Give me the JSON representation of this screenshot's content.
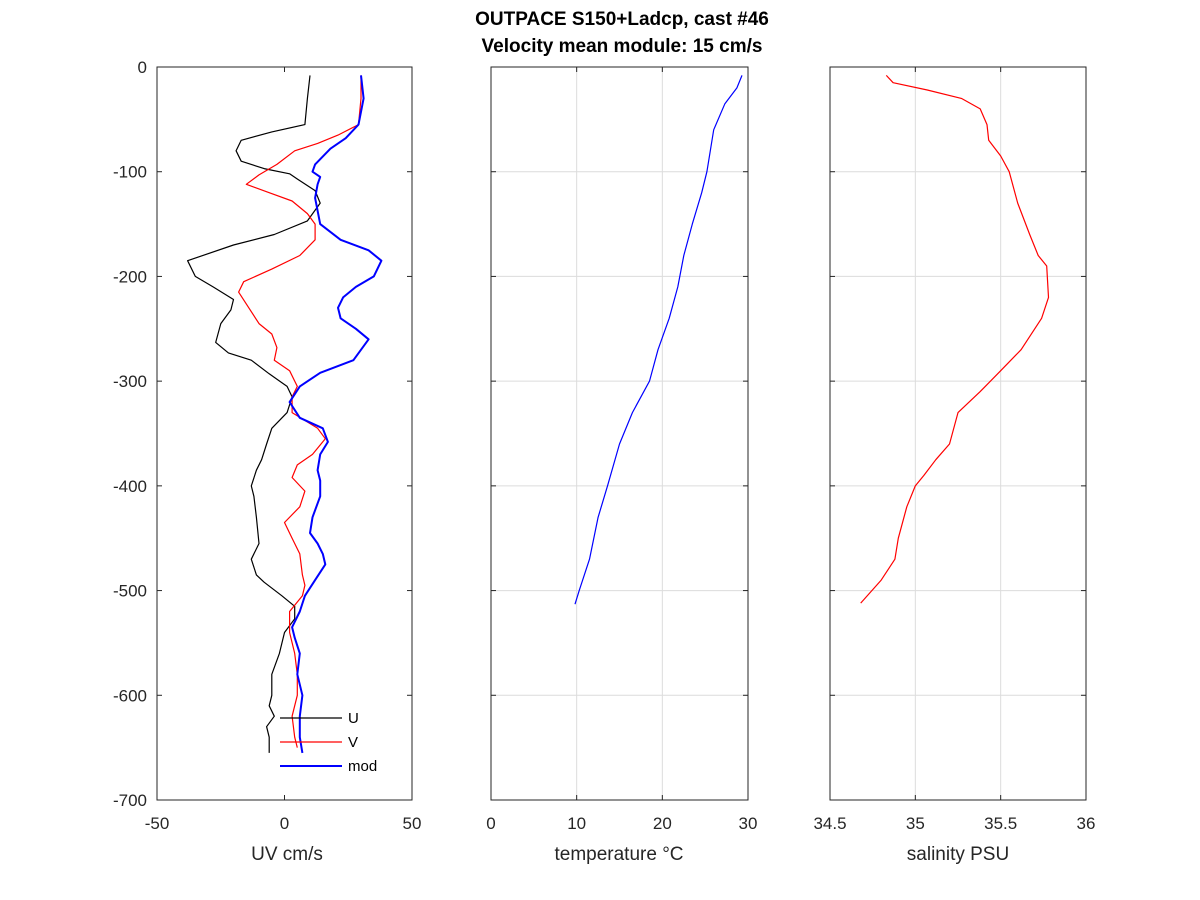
{
  "title_line1": "OUTPACE S150+Ladcp, cast #46",
  "title_line2": "Velocity mean module:  15 cm/s",
  "chart_data": [
    {
      "type": "line",
      "xlabel": "UV cm/s",
      "ylabel": "",
      "xlim": [
        -50,
        50
      ],
      "ylim": [
        -700,
        0
      ],
      "xticks": [
        -50,
        0,
        50
      ],
      "yticks": [
        0,
        -100,
        -200,
        -300,
        -400,
        -500,
        -600,
        -700
      ],
      "grid": false,
      "legend": "bottom-right",
      "series": [
        {
          "name": "U",
          "color": "#000000",
          "width": 1.2,
          "points": [
            [
              10,
              -8
            ],
            [
              9,
              -30
            ],
            [
              8,
              -55
            ],
            [
              -5,
              -62
            ],
            [
              -17,
              -70
            ],
            [
              -19,
              -80
            ],
            [
              -17,
              -90
            ],
            [
              -8,
              -97
            ],
            [
              2,
              -102
            ],
            [
              5,
              -107
            ],
            [
              12,
              -118
            ],
            [
              14,
              -130
            ],
            [
              9,
              -147
            ],
            [
              -4,
              -160
            ],
            [
              -20,
              -170
            ],
            [
              -38,
              -185
            ],
            [
              -35,
              -200
            ],
            [
              -28,
              -210
            ],
            [
              -20,
              -222
            ],
            [
              -21,
              -232
            ],
            [
              -25,
              -245
            ],
            [
              -27,
              -263
            ],
            [
              -22,
              -273
            ],
            [
              -13,
              -280
            ],
            [
              -6,
              -293
            ],
            [
              1,
              -305
            ],
            [
              3,
              -315
            ],
            [
              1,
              -330
            ],
            [
              -5,
              -345
            ],
            [
              -7,
              -360
            ],
            [
              -9,
              -375
            ],
            [
              -11,
              -385
            ],
            [
              -13,
              -400
            ],
            [
              -12,
              -410
            ],
            [
              -11,
              -430
            ],
            [
              -10,
              -455
            ],
            [
              -13,
              -470
            ],
            [
              -11,
              -485
            ],
            [
              -8,
              -492
            ],
            [
              -1,
              -505
            ],
            [
              4,
              -515
            ],
            [
              4,
              -527
            ],
            [
              0,
              -540
            ],
            [
              -2,
              -560
            ],
            [
              -5,
              -580
            ],
            [
              -5,
              -600
            ],
            [
              -6,
              -610
            ],
            [
              -4,
              -620
            ],
            [
              -7,
              -630
            ],
            [
              -6,
              -640
            ],
            [
              -6,
              -655
            ]
          ]
        },
        {
          "name": "V",
          "color": "#ff0000",
          "width": 1.2,
          "points": [
            [
              30,
              -8
            ],
            [
              30,
              -30
            ],
            [
              29,
              -55
            ],
            [
              21,
              -65
            ],
            [
              13,
              -73
            ],
            [
              4,
              -80
            ],
            [
              -3,
              -93
            ],
            [
              -10,
              -103
            ],
            [
              -15,
              -112
            ],
            [
              -6,
              -120
            ],
            [
              3,
              -128
            ],
            [
              9,
              -140
            ],
            [
              12,
              -150
            ],
            [
              12,
              -165
            ],
            [
              6,
              -180
            ],
            [
              -5,
              -193
            ],
            [
              -16,
              -205
            ],
            [
              -18,
              -215
            ],
            [
              -14,
              -230
            ],
            [
              -10,
              -245
            ],
            [
              -5,
              -255
            ],
            [
              -3,
              -268
            ],
            [
              -4,
              -280
            ],
            [
              2,
              -290
            ],
            [
              5,
              -305
            ],
            [
              3,
              -315
            ],
            [
              3,
              -330
            ],
            [
              13,
              -345
            ],
            [
              16,
              -355
            ],
            [
              11,
              -370
            ],
            [
              5,
              -380
            ],
            [
              3,
              -392
            ],
            [
              8,
              -405
            ],
            [
              6,
              -420
            ],
            [
              0,
              -435
            ],
            [
              3,
              -450
            ],
            [
              6,
              -465
            ],
            [
              7,
              -485
            ],
            [
              8,
              -495
            ],
            [
              7,
              -505
            ],
            [
              2,
              -520
            ],
            [
              2,
              -540
            ],
            [
              4,
              -560
            ],
            [
              5,
              -580
            ],
            [
              5,
              -600
            ],
            [
              3,
              -620
            ],
            [
              4,
              -640
            ],
            [
              5,
              -650
            ]
          ]
        },
        {
          "name": "mod",
          "color": "#0000ff",
          "width": 2,
          "points": [
            [
              30,
              -8
            ],
            [
              31,
              -30
            ],
            [
              29,
              -55
            ],
            [
              24,
              -68
            ],
            [
              18,
              -78
            ],
            [
              12,
              -93
            ],
            [
              11,
              -100
            ],
            [
              14,
              -105
            ],
            [
              13,
              -112
            ],
            [
              12,
              -125
            ],
            [
              14,
              -150
            ],
            [
              22,
              -165
            ],
            [
              33,
              -175
            ],
            [
              38,
              -185
            ],
            [
              35,
              -200
            ],
            [
              28,
              -210
            ],
            [
              23,
              -220
            ],
            [
              21,
              -230
            ],
            [
              22,
              -240
            ],
            [
              28,
              -250
            ],
            [
              33,
              -260
            ],
            [
              27,
              -280
            ],
            [
              14,
              -292
            ],
            [
              6,
              -305
            ],
            [
              2,
              -320
            ],
            [
              6,
              -335
            ],
            [
              15,
              -345
            ],
            [
              17,
              -358
            ],
            [
              14,
              -370
            ],
            [
              13,
              -385
            ],
            [
              14,
              -395
            ],
            [
              14,
              -410
            ],
            [
              11,
              -430
            ],
            [
              10,
              -445
            ],
            [
              13,
              -455
            ],
            [
              15,
              -465
            ],
            [
              16,
              -475
            ],
            [
              12,
              -490
            ],
            [
              8,
              -505
            ],
            [
              6,
              -520
            ],
            [
              3,
              -535
            ],
            [
              4,
              -545
            ],
            [
              6,
              -560
            ],
            [
              5,
              -580
            ],
            [
              7,
              -600
            ],
            [
              6,
              -620
            ],
            [
              6,
              -640
            ],
            [
              7,
              -655
            ]
          ]
        }
      ]
    },
    {
      "type": "line",
      "xlabel": "temperature °C",
      "ylabel": "",
      "xlim": [
        0,
        30
      ],
      "ylim": [
        -700,
        0
      ],
      "xticks": [
        0,
        10,
        20,
        30
      ],
      "yticks": [
        0,
        -100,
        -200,
        -300,
        -400,
        -500,
        -600,
        -700
      ],
      "grid": true,
      "series": [
        {
          "name": "",
          "color": "#0000ff",
          "width": 1.2,
          "points": [
            [
              29.3,
              -8
            ],
            [
              28.7,
              -20
            ],
            [
              27.3,
              -35
            ],
            [
              26.0,
              -60
            ],
            [
              25.6,
              -80
            ],
            [
              25.2,
              -100
            ],
            [
              24.6,
              -120
            ],
            [
              23.5,
              -150
            ],
            [
              22.5,
              -180
            ],
            [
              21.8,
              -210
            ],
            [
              20.8,
              -240
            ],
            [
              19.5,
              -270
            ],
            [
              18.5,
              -300
            ],
            [
              16.5,
              -330
            ],
            [
              15.0,
              -360
            ],
            [
              13.6,
              -400
            ],
            [
              12.5,
              -430
            ],
            [
              11.5,
              -470
            ],
            [
              10.3,
              -500
            ],
            [
              9.8,
              -513
            ]
          ]
        }
      ]
    },
    {
      "type": "line",
      "xlabel": "salinity PSU",
      "ylabel": "",
      "xlim": [
        34.5,
        36
      ],
      "xticks": [
        34.5,
        35,
        35.5,
        36
      ],
      "xticklabels": [
        "34.5",
        "35",
        "35.5",
        "36"
      ],
      "ylim": [
        -700,
        0
      ],
      "yticks": [
        0,
        -100,
        -200,
        -300,
        -400,
        -500,
        -600,
        -700
      ],
      "grid": true,
      "series": [
        {
          "name": "",
          "color": "#ff0000",
          "width": 1.2,
          "points": [
            [
              34.83,
              -8
            ],
            [
              34.87,
              -15
            ],
            [
              35.07,
              -22
            ],
            [
              35.27,
              -30
            ],
            [
              35.38,
              -40
            ],
            [
              35.42,
              -55
            ],
            [
              35.43,
              -70
            ],
            [
              35.5,
              -85
            ],
            [
              35.55,
              -100
            ],
            [
              35.6,
              -130
            ],
            [
              35.67,
              -160
            ],
            [
              35.72,
              -180
            ],
            [
              35.77,
              -190
            ],
            [
              35.78,
              -220
            ],
            [
              35.74,
              -240
            ],
            [
              35.62,
              -270
            ],
            [
              35.5,
              -290
            ],
            [
              35.38,
              -310
            ],
            [
              35.25,
              -330
            ],
            [
              35.2,
              -360
            ],
            [
              35.12,
              -375
            ],
            [
              35.05,
              -390
            ],
            [
              35.0,
              -400
            ],
            [
              34.95,
              -420
            ],
            [
              34.9,
              -450
            ],
            [
              34.88,
              -470
            ],
            [
              34.8,
              -490
            ],
            [
              34.68,
              -512
            ]
          ]
        }
      ]
    }
  ],
  "legend_labels": {
    "u": "U",
    "v": "V",
    "mod": "mod"
  },
  "ytick_labels": [
    "0",
    "-100",
    "-200",
    "-300",
    "-400",
    "-500",
    "-600",
    "-700"
  ],
  "panel1_xtick_labels": [
    "-50",
    "0",
    "50"
  ],
  "panel2_xtick_labels": [
    "0",
    "10",
    "20",
    "30"
  ],
  "panel3_xtick_labels": [
    "34.5",
    "35",
    "35.5",
    "36"
  ]
}
